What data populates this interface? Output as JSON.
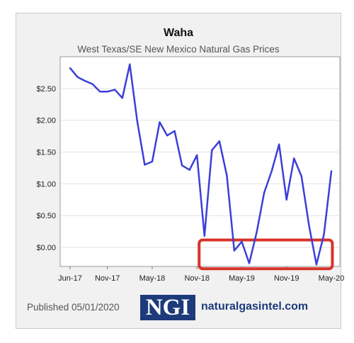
{
  "chart_data": {
    "type": "line",
    "title": "Waha",
    "subtitle": "West Texas/SE New Mexico Natural Gas Prices",
    "xlabel": "",
    "ylabel": "",
    "x_tick_labels": [
      "Jun-17",
      "Nov-17",
      "May-18",
      "Nov-18",
      "May-19",
      "Nov-19",
      "May-20"
    ],
    "y_tick_labels": [
      "$2.50",
      "$2.00",
      "$1.50",
      "$1.00",
      "$0.50",
      "$0.00"
    ],
    "ylim": [
      -0.3,
      3.0
    ],
    "series": [
      {
        "name": "",
        "color": "#3b3fd8",
        "x": [
          "Jun-17",
          "Jul-17",
          "Aug-17",
          "Sep-17",
          "Oct-17",
          "Nov-17",
          "Dec-17",
          "Jan-18",
          "Feb-18",
          "Mar-18",
          "Apr-18",
          "May-18",
          "Jun-18",
          "Jul-18",
          "Aug-18",
          "Sep-18",
          "Oct-18",
          "Nov-18",
          "Dec-18",
          "Jan-19",
          "Feb-19",
          "Mar-19",
          "Apr-19",
          "May-19",
          "Jun-19",
          "Jul-19",
          "Aug-19",
          "Sep-19",
          "Oct-19",
          "Nov-19",
          "Dec-19",
          "Jan-20",
          "Feb-20",
          "Mar-20",
          "Apr-20",
          "May-20"
        ],
        "values": [
          2.82,
          2.68,
          2.62,
          2.57,
          2.45,
          2.45,
          2.48,
          2.35,
          2.88,
          1.98,
          1.3,
          1.35,
          1.97,
          1.76,
          1.83,
          1.29,
          1.22,
          1.45,
          0.18,
          1.53,
          1.67,
          1.13,
          -0.05,
          0.09,
          -0.25,
          0.24,
          0.86,
          1.2,
          1.62,
          0.75,
          1.4,
          1.12,
          0.35,
          -0.27,
          0.2,
          1.2
        ]
      }
    ],
    "annotations": [
      {
        "type": "highlight-box",
        "color": "#d9332b",
        "x_start": "Nov-18",
        "x_end": "Apr-20",
        "y_low": -0.27,
        "y_high": 0.05
      }
    ]
  },
  "footer": {
    "published": "Published 05/01/2020",
    "logo_text": "NGI",
    "site": "naturalgasintel.com"
  }
}
